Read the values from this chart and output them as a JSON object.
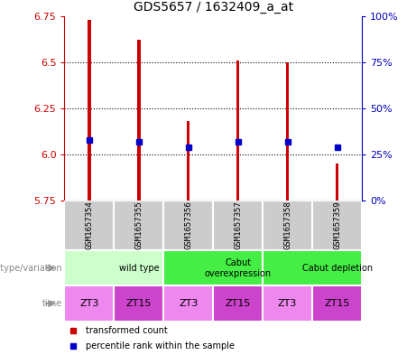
{
  "title": "GDS5657 / 1632409_a_at",
  "samples": [
    "GSM1657354",
    "GSM1657355",
    "GSM1657356",
    "GSM1657357",
    "GSM1657358",
    "GSM1657359"
  ],
  "bar_tops": [
    6.73,
    6.62,
    6.18,
    6.51,
    6.5,
    5.95
  ],
  "bar_bottom": 5.75,
  "blue_y": [
    6.08,
    6.07,
    6.04,
    6.07,
    6.07,
    6.04
  ],
  "ylim": [
    5.75,
    6.75
  ],
  "yticks_left": [
    5.75,
    6.0,
    6.25,
    6.5,
    6.75
  ],
  "yticks_right": [
    0,
    25,
    50,
    75,
    100
  ],
  "time_labels": [
    "ZT3",
    "ZT15",
    "ZT3",
    "ZT15",
    "ZT3",
    "ZT15"
  ],
  "bar_color": "#CC0000",
  "blue_color": "#0000CC",
  "label_left_color": "#CC0000",
  "label_right_color": "#0000BB",
  "sample_box_color": "#CCCCCC",
  "geno_groups": [
    {
      "label": "wild type",
      "start": 0,
      "end": 2,
      "color": "#CCFFCC"
    },
    {
      "label": "Cabut\noverexpression",
      "start": 2,
      "end": 4,
      "color": "#44EE44"
    },
    {
      "label": "Cabut depletion",
      "start": 4,
      "end": 6,
      "color": "#44EE44"
    }
  ],
  "time_colors_alt": [
    "#EE88EE",
    "#CC44CC"
  ],
  "figsize": [
    4.61,
    3.93
  ],
  "dpi": 100
}
